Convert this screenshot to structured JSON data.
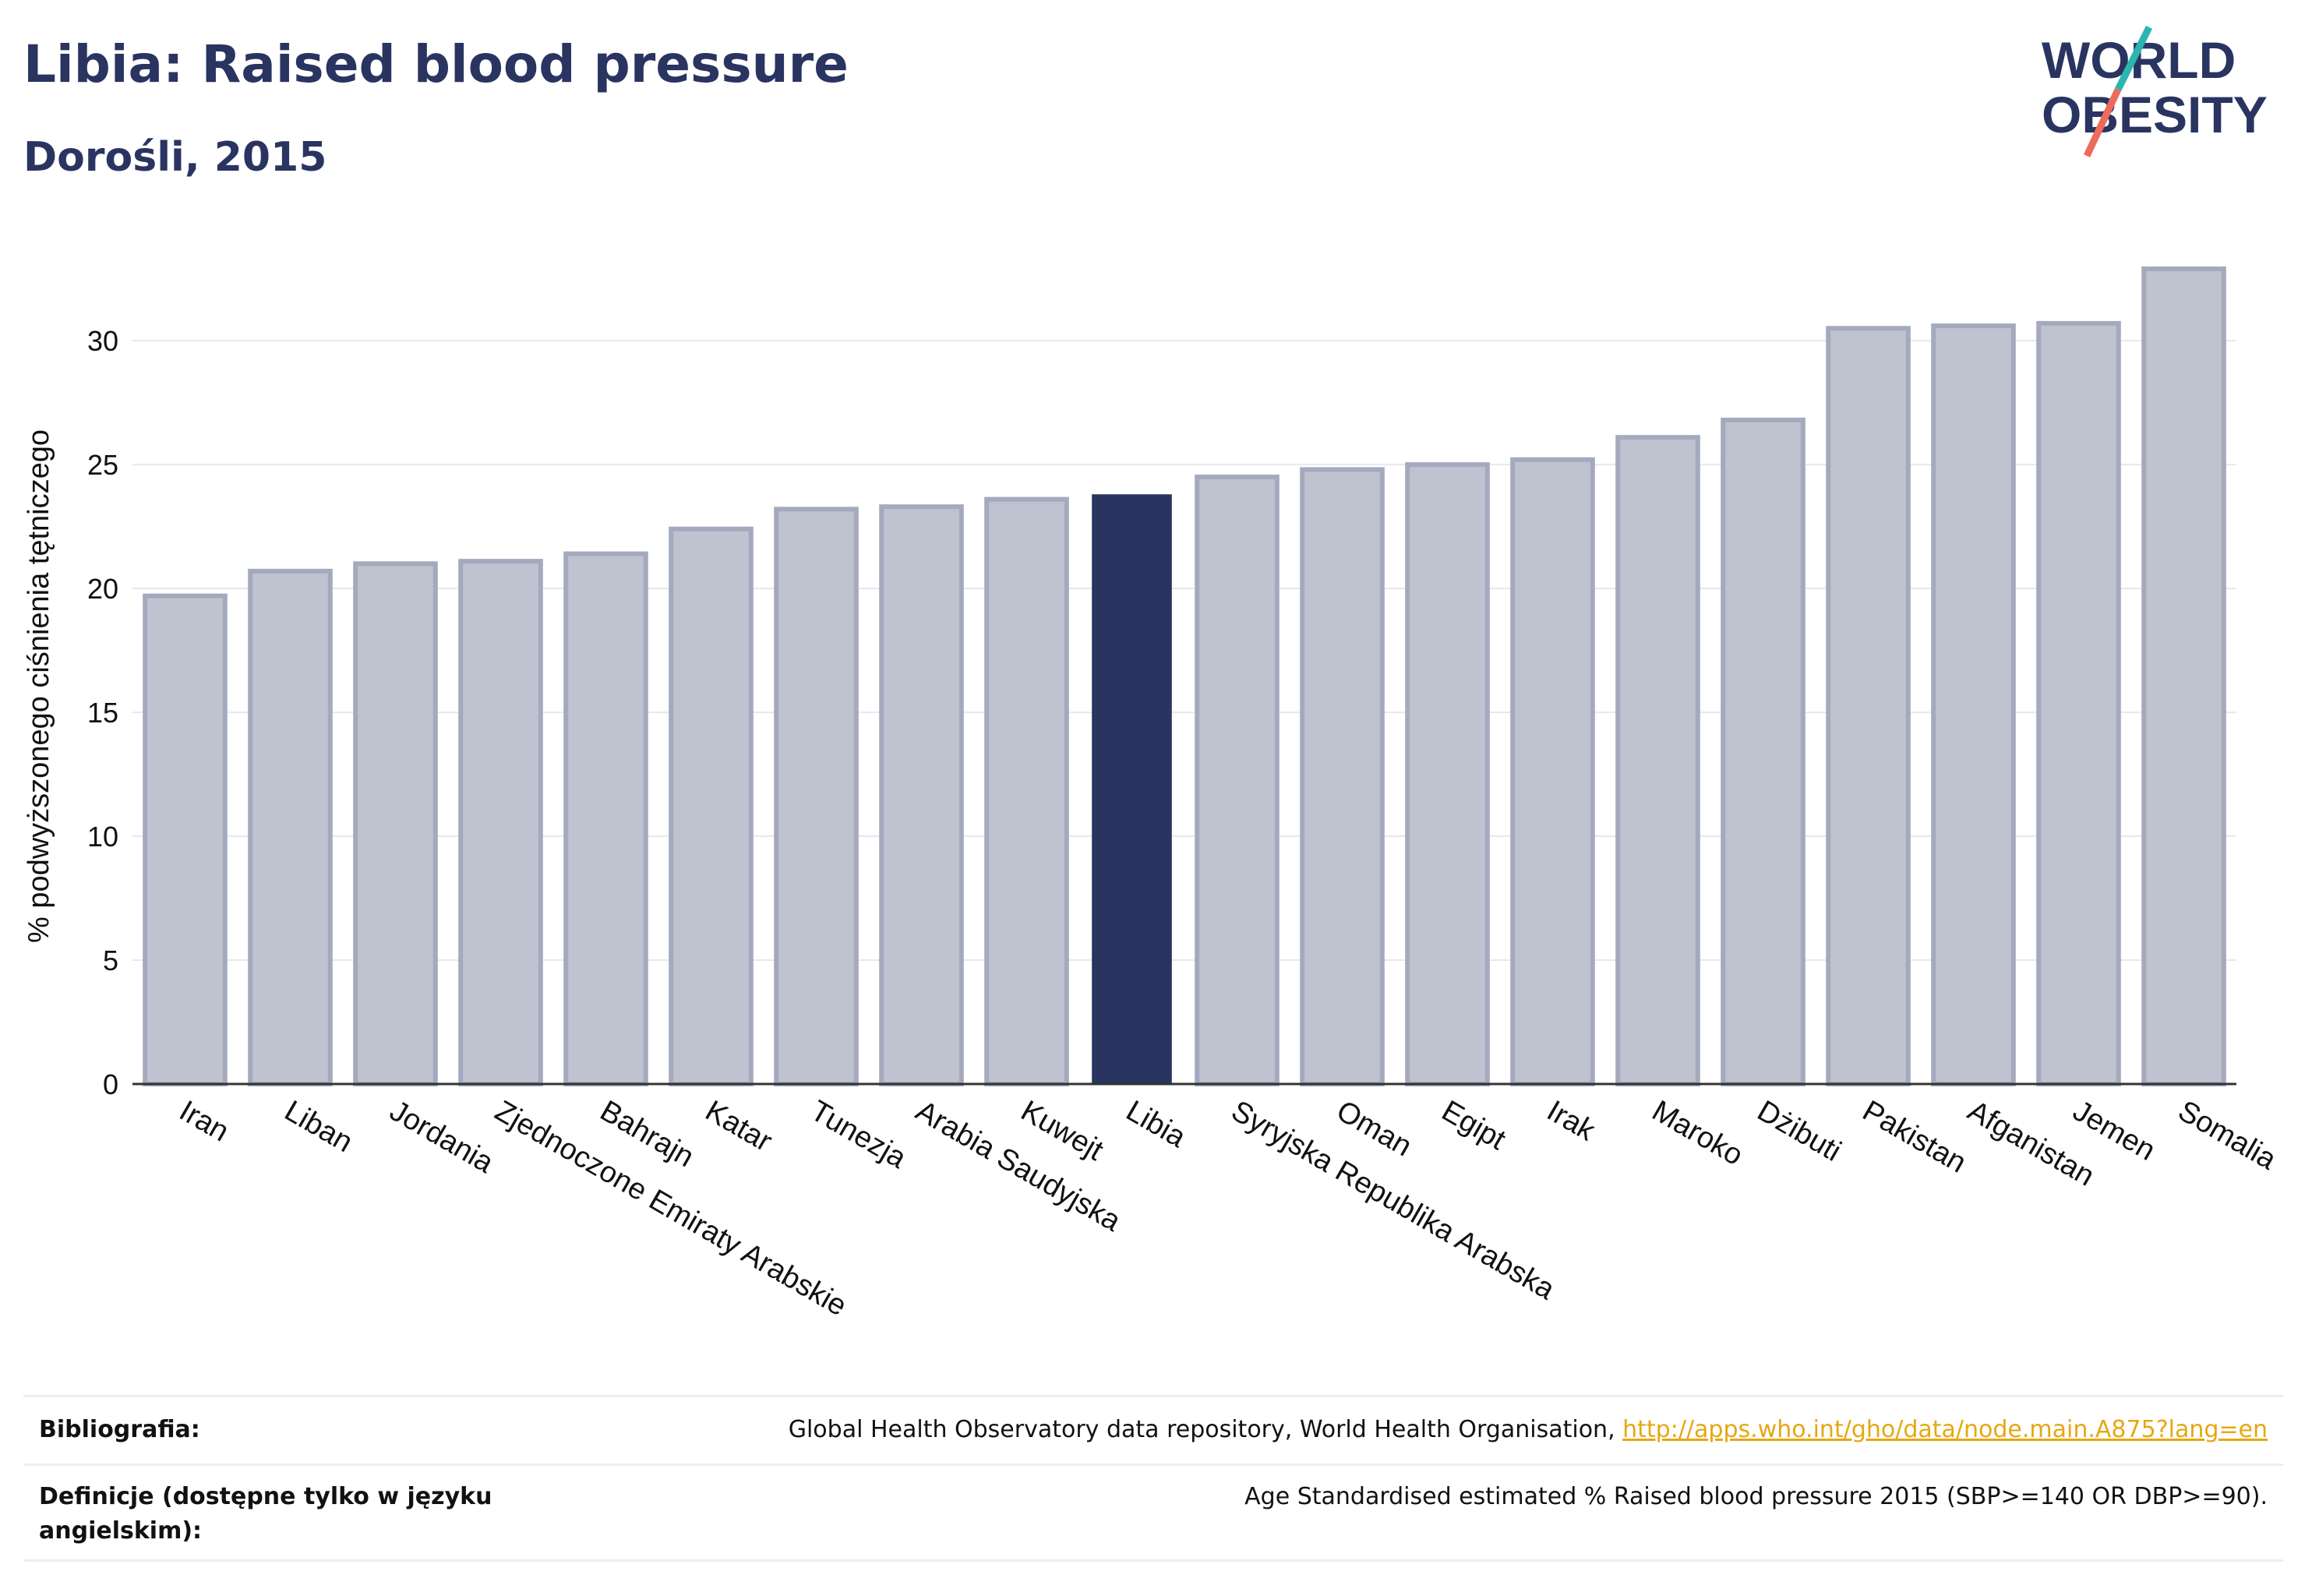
{
  "header": {
    "title": "Libia: Raised blood pressure",
    "subtitle": "Dorośli, 2015"
  },
  "logo": {
    "line1": "WORLD",
    "line2": "OBESITY"
  },
  "chart_data": {
    "type": "bar",
    "title": "Libia: Raised blood pressure",
    "subtitle": "Dorośli, 2015",
    "xlabel": "",
    "ylabel": "% podwyższonego ciśnienia tętniczego",
    "ylim": [
      0,
      34
    ],
    "yticks": [
      0,
      5,
      10,
      15,
      20,
      25,
      30
    ],
    "grid": true,
    "legend": "none",
    "highlight": "Libia",
    "colors": {
      "bar": "#bfc3d0",
      "bar_edge": "#a4a9be",
      "highlight": "#2a3461"
    },
    "categories": [
      "Iran",
      "Liban",
      "Jordania",
      "Zjednoczone Emiraty Arabskie",
      "Bahrajn",
      "Katar",
      "Tunezja",
      "Arabia Saudyjska",
      "Kuwejt",
      "Libia",
      "Syryjska Republika Arabska",
      "Oman",
      "Egipt",
      "Irak",
      "Maroko",
      "Dżibuti",
      "Pakistan",
      "Afganistan",
      "Jemen",
      "Somalia"
    ],
    "values": [
      19.7,
      20.7,
      21.0,
      21.1,
      21.4,
      22.4,
      23.2,
      23.3,
      23.6,
      23.8,
      24.5,
      24.8,
      25.0,
      25.2,
      26.1,
      26.8,
      30.5,
      30.6,
      30.7,
      32.9
    ]
  },
  "footer": {
    "bibliography_label": "Bibliografia:",
    "bibliography_text": "Global Health Observatory data repository, World Health Organisation, ",
    "bibliography_link": "http://apps.who.int/gho/data/node.main.A875?lang=en",
    "definitions_label": "Definicje (dostępne tylko w języku angielskim):",
    "definitions_text": "Age Standardised estimated % Raised blood pressure 2015 (SBP>=140 OR DBP>=90)."
  }
}
